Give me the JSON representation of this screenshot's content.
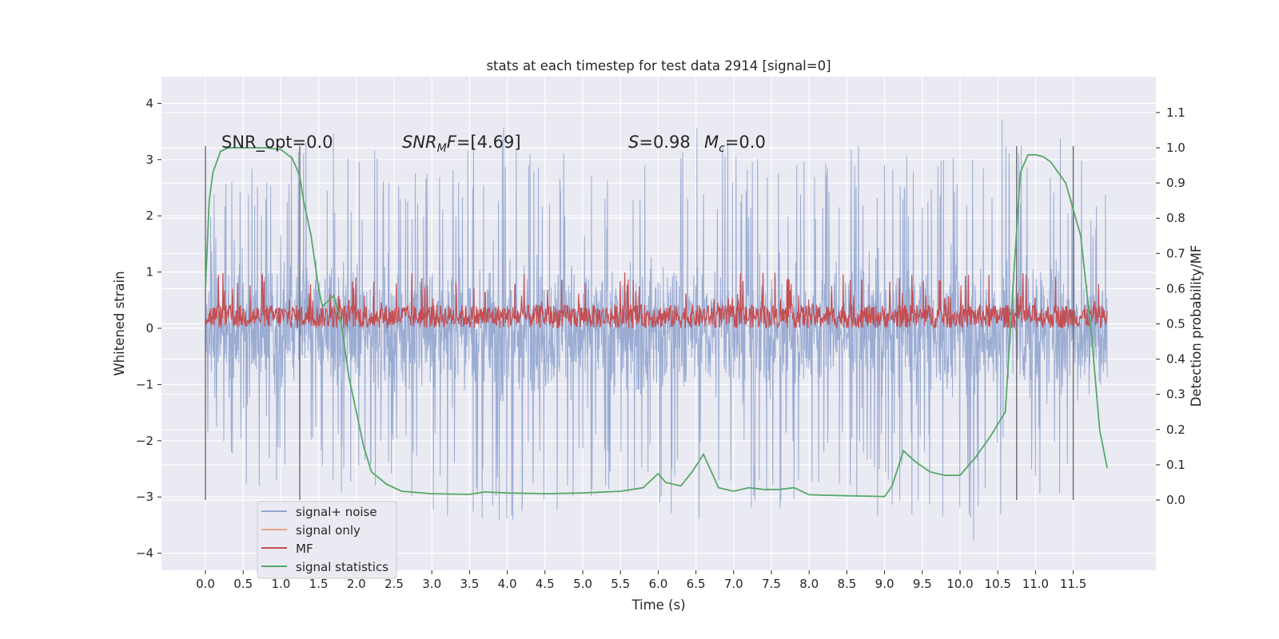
{
  "chart_data": {
    "type": "line",
    "title": "stats at each timestep for test data 2914 [signal=0]",
    "xlabel": "Time (s)",
    "ylabel_left": "Whitened strain",
    "ylabel_right": "Detection probability/MF",
    "xlim": [
      -0.5,
      12.7
    ],
    "ylim_left": [
      -4.4,
      4.5
    ],
    "ylim_right": [
      -0.2,
      1.2
    ],
    "xticks": [
      "0.0",
      "0.5",
      "1.0",
      "1.5",
      "2.0",
      "2.5",
      "3.0",
      "3.5",
      "4.0",
      "4.5",
      "5.0",
      "5.5",
      "6.0",
      "6.5",
      "7.0",
      "7.5",
      "8.0",
      "8.5",
      "9.0",
      "9.5",
      "10.0",
      "10.5",
      "11.0",
      "11.5"
    ],
    "yticks_left": [
      "4",
      "3",
      "2",
      "1",
      "0",
      "−1",
      "−2",
      "−3",
      "−4"
    ],
    "yticks_right": [
      "1.1",
      "1.0",
      "0.9",
      "0.8",
      "0.7",
      "0.6",
      "0.5",
      "0.4",
      "0.3",
      "0.2",
      "0.1",
      "0.0"
    ],
    "grid": true,
    "legend_position": "lower-left",
    "annotations": {
      "snr_opt": "SNR_opt=0.0",
      "snr_mf_italic": "SNR",
      "snr_mf_sub": "M",
      "snr_mf_italic2": "F",
      "snr_mf_rest": "=[4.69]",
      "s_italic": "S",
      "s_rest": "=0.98",
      "mc_italic": "M",
      "mc_sub": "c",
      "mc_rest": "=0.0"
    },
    "vertical_markers": [
      0.0,
      1.25,
      10.75,
      11.5
    ],
    "series": [
      {
        "name": "signal+ noise",
        "color": "#92a5cf",
        "axis": "left",
        "envelope_upper": [
          [
            0.0,
            2.7
          ],
          [
            0.5,
            2.9
          ],
          [
            1.0,
            3.0
          ],
          [
            1.6,
            3.8
          ],
          [
            2.5,
            3.0
          ],
          [
            3.0,
            2.9
          ],
          [
            4.3,
            3.9
          ],
          [
            5.0,
            2.7
          ],
          [
            5.5,
            3.5
          ],
          [
            6.0,
            3.1
          ],
          [
            6.6,
            3.8
          ],
          [
            7.5,
            3.2
          ],
          [
            8.0,
            3.4
          ],
          [
            8.6,
            3.3
          ],
          [
            9.0,
            3.0
          ],
          [
            9.8,
            3.3
          ],
          [
            10.5,
            4.1
          ],
          [
            11.0,
            3.6
          ],
          [
            11.5,
            3.3
          ],
          [
            11.95,
            2.4
          ]
        ],
        "envelope_lower": [
          [
            0.0,
            -2.0
          ],
          [
            0.5,
            -2.9
          ],
          [
            1.0,
            -2.7
          ],
          [
            1.7,
            -3.0
          ],
          [
            2.5,
            -3.0
          ],
          [
            3.7,
            -3.6
          ],
          [
            4.5,
            -3.3
          ],
          [
            5.5,
            -3.2
          ],
          [
            6.2,
            -3.6
          ],
          [
            7.2,
            -3.5
          ],
          [
            8.0,
            -3.1
          ],
          [
            8.7,
            -3.4
          ],
          [
            9.5,
            -3.3
          ],
          [
            10.3,
            -3.9
          ],
          [
            10.8,
            -3.0
          ],
          [
            11.3,
            -3.2
          ],
          [
            11.95,
            -1.5
          ]
        ]
      },
      {
        "name": "signal only",
        "color": "#e8a68a",
        "axis": "left",
        "values": []
      },
      {
        "name": "MF",
        "color": "#c44e52",
        "axis": "left",
        "baseline": 0.0,
        "max": 1.0
      },
      {
        "name": "signal statistics",
        "color": "#55a868",
        "axis": "right",
        "x": [
          0.0,
          0.05,
          0.1,
          0.2,
          0.3,
          0.5,
          0.8,
          1.0,
          1.15,
          1.25,
          1.3,
          1.4,
          1.5,
          1.55,
          1.6,
          1.7,
          1.8,
          1.9,
          2.0,
          2.1,
          2.2,
          2.4,
          2.6,
          3.0,
          3.5,
          3.7,
          4.0,
          4.5,
          5.0,
          5.2,
          5.5,
          5.8,
          6.0,
          6.1,
          6.3,
          6.45,
          6.6,
          6.8,
          7.0,
          7.2,
          7.4,
          7.6,
          7.8,
          8.0,
          8.5,
          9.0,
          9.1,
          9.25,
          9.4,
          9.6,
          9.8,
          10.0,
          10.2,
          10.4,
          10.6,
          10.7,
          10.8,
          10.9,
          11.0,
          11.1,
          11.2,
          11.4,
          11.6,
          11.75,
          11.85,
          11.95
        ],
        "values": [
          0.6,
          0.85,
          0.93,
          0.99,
          1.0,
          1.0,
          1.0,
          0.995,
          0.97,
          0.92,
          0.85,
          0.75,
          0.6,
          0.55,
          0.56,
          0.58,
          0.5,
          0.35,
          0.25,
          0.15,
          0.08,
          0.045,
          0.025,
          0.018,
          0.016,
          0.023,
          0.02,
          0.018,
          0.02,
          0.022,
          0.025,
          0.035,
          0.075,
          0.05,
          0.04,
          0.08,
          0.13,
          0.035,
          0.025,
          0.035,
          0.03,
          0.03,
          0.035,
          0.015,
          0.012,
          0.01,
          0.04,
          0.14,
          0.11,
          0.08,
          0.07,
          0.07,
          0.12,
          0.18,
          0.25,
          0.6,
          0.93,
          0.98,
          0.98,
          0.975,
          0.96,
          0.9,
          0.75,
          0.45,
          0.2,
          0.09
        ]
      }
    ]
  }
}
